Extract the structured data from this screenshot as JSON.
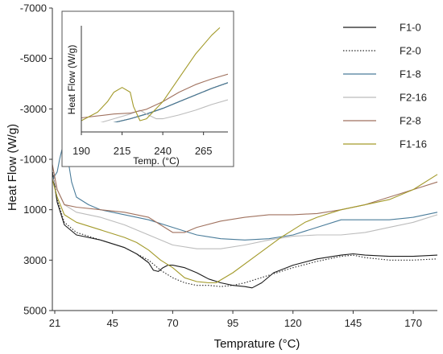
{
  "chart_data": [
    {
      "type": "line",
      "xlabel": "Temprature (°C)",
      "ylabel": "Heat Flow (W/g)",
      "xlim": [
        20,
        180
      ],
      "ylim": [
        -7000,
        5000
      ],
      "y_reversed": true,
      "x_ticks": [
        "21",
        "45",
        "70",
        "95",
        "120",
        "145",
        "170"
      ],
      "x_tick_values": [
        21,
        45,
        70,
        95,
        120,
        145,
        170
      ],
      "y_ticks": [
        "-7000",
        "-5000",
        "-3000",
        "-1000",
        "1000",
        "3000",
        "5000"
      ],
      "y_tick_values": [
        -7000,
        -5000,
        -3000,
        -1000,
        1000,
        3000,
        5000
      ],
      "grid": false,
      "legend_position": "top-right",
      "series": [
        {
          "name": "F1-0",
          "color": "#1a1a1a",
          "dash": "solid",
          "x": [
            20,
            22,
            25,
            30,
            40,
            50,
            55,
            60,
            62,
            64,
            66,
            68,
            70,
            75,
            80,
            85,
            90,
            95,
            100,
            103,
            107,
            112,
            120,
            130,
            140,
            145,
            150,
            160,
            170,
            180
          ],
          "y": [
            -500,
            700,
            1600,
            2000,
            2200,
            2500,
            2750,
            3100,
            3400,
            3450,
            3300,
            3200,
            3200,
            3300,
            3500,
            3750,
            3900,
            4000,
            4050,
            4100,
            3900,
            3500,
            3200,
            2950,
            2800,
            2750,
            2800,
            2850,
            2850,
            2800
          ]
        },
        {
          "name": "F2-0",
          "color": "#2a2a2a",
          "dash": "1.5,2",
          "x": [
            20,
            22,
            25,
            30,
            40,
            50,
            60,
            65,
            70,
            75,
            80,
            85,
            90,
            95,
            100,
            110,
            120,
            130,
            140,
            145,
            150,
            160,
            170,
            180
          ],
          "y": [
            -600,
            600,
            1500,
            1900,
            2200,
            2500,
            3000,
            3400,
            3700,
            3900,
            4000,
            4000,
            4050,
            4000,
            3900,
            3600,
            3300,
            3050,
            2850,
            2800,
            2900,
            3000,
            3000,
            2950
          ]
        },
        {
          "name": "F1-8",
          "color": "#4a7c9a",
          "dash": "solid",
          "x": [
            20,
            22,
            23,
            24,
            25,
            26,
            27,
            28,
            30,
            35,
            40,
            50,
            60,
            70,
            80,
            90,
            100,
            110,
            120,
            130,
            140,
            150,
            160,
            170,
            180
          ],
          "y": [
            -200,
            -500,
            -1000,
            -1400,
            -1550,
            -1300,
            -700,
            -100,
            500,
            800,
            1000,
            1200,
            1400,
            1700,
            2000,
            2150,
            2200,
            2150,
            2000,
            1700,
            1400,
            1400,
            1400,
            1300,
            1100
          ]
        },
        {
          "name": "F2-16",
          "color": "#bcbcbc",
          "dash": "solid",
          "x": [
            20,
            22,
            25,
            30,
            40,
            50,
            60,
            70,
            80,
            90,
            100,
            110,
            120,
            130,
            140,
            150,
            160,
            170,
            180
          ],
          "y": [
            -300,
            200,
            800,
            1100,
            1300,
            1600,
            2000,
            2400,
            2550,
            2550,
            2400,
            2200,
            2050,
            2000,
            2000,
            1900,
            1700,
            1500,
            1200
          ]
        },
        {
          "name": "F2-8",
          "color": "#a0725f",
          "dash": "solid",
          "x": [
            20,
            22,
            25,
            30,
            40,
            50,
            60,
            65,
            70,
            75,
            80,
            90,
            100,
            110,
            120,
            130,
            140,
            150,
            160,
            170,
            180
          ],
          "y": [
            -800,
            200,
            800,
            900,
            1000,
            1100,
            1300,
            1600,
            1900,
            1900,
            1700,
            1450,
            1300,
            1200,
            1200,
            1150,
            1000,
            800,
            500,
            200,
            -100
          ]
        },
        {
          "name": "F1-16",
          "color": "#a39a2a",
          "dash": "solid",
          "x": [
            20,
            22,
            25,
            30,
            40,
            50,
            55,
            60,
            65,
            70,
            75,
            80,
            85,
            88,
            95,
            105,
            115,
            120,
            125,
            130,
            140,
            150,
            160,
            170,
            180
          ],
          "y": [
            -200,
            500,
            1200,
            1500,
            1800,
            2100,
            2300,
            2600,
            3000,
            3300,
            3700,
            3850,
            3900,
            3900,
            3500,
            2800,
            2100,
            1800,
            1500,
            1300,
            1000,
            800,
            600,
            200,
            -400
          ]
        }
      ]
    },
    {
      "type": "line",
      "role": "inset",
      "xlabel": "Temp. (°C)",
      "ylabel": "Heat Flow (W/g)",
      "xlim": [
        190,
        280
      ],
      "ylim": [
        0,
        1
      ],
      "x_ticks": [
        "190",
        "215",
        "240",
        "265"
      ],
      "x_tick_values": [
        190,
        215,
        240,
        265
      ],
      "grid": false,
      "series": [
        {
          "name": "F1-0",
          "color": "#1a1a1a",
          "x": [
            190,
            200,
            210,
            220,
            230,
            240,
            250,
            260,
            270,
            280
          ],
          "y": [
            0.0,
            0.04,
            0.08,
            0.12,
            0.17,
            0.23,
            0.3,
            0.37,
            0.44,
            0.5
          ]
        },
        {
          "name": "F1-8",
          "color": "#4a7c9a",
          "x": [
            190,
            200,
            210,
            220,
            230,
            240,
            250,
            260,
            270,
            280
          ],
          "y": [
            0.0,
            0.04,
            0.08,
            0.12,
            0.17,
            0.23,
            0.3,
            0.37,
            0.44,
            0.5
          ]
        },
        {
          "name": "F2-16",
          "color": "#bcbcbc",
          "x": [
            190,
            200,
            210,
            220,
            226,
            230,
            236,
            240,
            250,
            260,
            270,
            280
          ],
          "y": [
            0.03,
            0.07,
            0.12,
            0.17,
            0.21,
            0.17,
            0.12,
            0.12,
            0.16,
            0.21,
            0.27,
            0.32
          ]
        },
        {
          "name": "F2-8",
          "color": "#a0725f",
          "x": [
            190,
            200,
            210,
            220,
            230,
            240,
            250,
            260,
            270,
            280
          ],
          "y": [
            0.13,
            0.15,
            0.17,
            0.18,
            0.22,
            0.3,
            0.4,
            0.48,
            0.54,
            0.59
          ]
        },
        {
          "name": "F1-16",
          "color": "#a39a2a",
          "x": [
            190,
            200,
            206,
            210,
            215,
            220,
            222,
            226,
            230,
            240,
            250,
            260,
            270,
            275
          ],
          "y": [
            0.1,
            0.19,
            0.3,
            0.4,
            0.45,
            0.4,
            0.25,
            0.1,
            0.12,
            0.3,
            0.55,
            0.8,
            1.0,
            1.08
          ]
        }
      ]
    }
  ]
}
